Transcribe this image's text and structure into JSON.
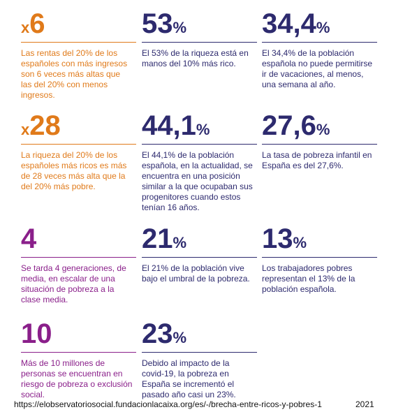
{
  "stats": [
    {
      "prefix": "x",
      "number": "6",
      "text": "Las rentas del 20% de los españoles con más ingresos son 6 veces más altas que las del 20% con menos ingresos.",
      "color": "#e07a1a"
    },
    {
      "number": "53",
      "suffix": "%",
      "text": "El 53% de la riqueza está en manos del 10% más rico.",
      "color": "#2d2a6e"
    },
    {
      "number": "34,4",
      "suffix": "%",
      "text": "El 34,4% de la población española no puede permitirse ir de vacaciones, al menos, una semana al año.",
      "color": "#2d2a6e"
    },
    {
      "prefix": "x",
      "number": "28",
      "text": "La riqueza del 20% de los españoles más ricos es más de 28 veces más alta que la del 20% más pobre.",
      "color": "#e07a1a"
    },
    {
      "number": "44,1",
      "suffix": "%",
      "text": "El 44,1% de la población española, en la actualidad, se encuentra en una posición similar a la que ocupaban sus progenitores cuando estos tenían 16 años.",
      "color": "#2d2a6e"
    },
    {
      "number": "27,6",
      "suffix": "%",
      "text": "La tasa de pobreza infantil en España es del 27,6%.",
      "color": "#2d2a6e"
    },
    {
      "number": "4",
      "text": "Se tarda 4 generaciones, de media, en escalar de una situación de pobreza a la clase media.",
      "color": "#8a1f8a"
    },
    {
      "number": "21",
      "suffix": "%",
      "text": "El 21% de la población vive bajo el umbral de la pobreza.",
      "color": "#2d2a6e"
    },
    {
      "number": "13",
      "suffix": "%",
      "text": "Los trabajadores pobres representan el 13% de la población española.",
      "color": "#2d2a6e"
    },
    {
      "number": "10",
      "text": "Más de 10 millones de personas se encuentran en riesgo de pobreza o exclusión social.",
      "color": "#8a1f8a"
    },
    {
      "number": "23",
      "suffix": "%",
      "text": "Debido al impacto de la covid-19, la pobreza en España se incrementó el pasado año casi un 23%.",
      "color": "#2d2a6e"
    }
  ],
  "footer": {
    "source": "https://elobservatoriosocial.fundacionlacaixa.org/es/-/brecha-entre-ricos-y-pobres-1",
    "year": "2021"
  }
}
